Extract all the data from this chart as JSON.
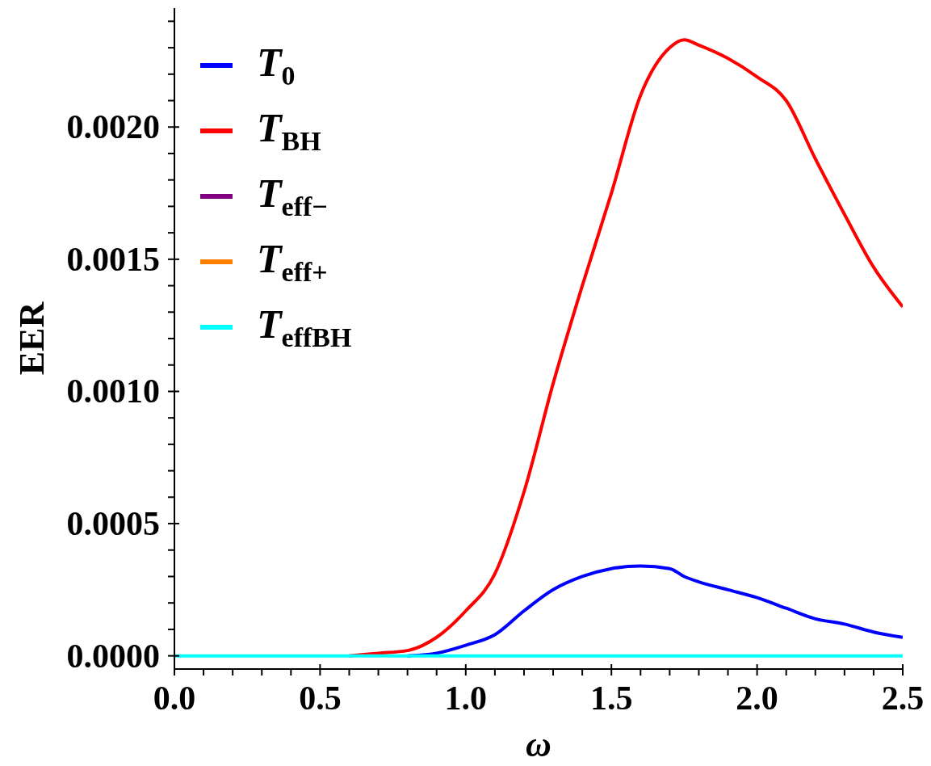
{
  "chart_data": {
    "type": "line",
    "xlabel": "ω",
    "ylabel": "EER",
    "legend": "top left",
    "grid": false,
    "marker": "none",
    "line_style": "solid",
    "x": [
      0,
      0.1,
      0.2,
      0.3,
      0.4,
      0.5,
      0.6,
      0.7,
      0.8,
      0.9,
      1.0,
      1.1,
      1.2,
      1.3,
      1.4,
      1.5,
      1.6,
      1.7,
      1.75,
      1.8,
      1.9,
      2.0,
      2.1,
      2.2,
      2.3,
      2.4,
      2.5
    ],
    "series": [
      {
        "name": "T$_{0}$",
        "color": "#0000ff",
        "values": [
          null,
          null,
          null,
          null,
          null,
          null,
          null,
          null,
          0,
          1e-05,
          4e-05,
          8e-05,
          0.00017,
          0.00025,
          0.0003,
          0.00033,
          0.00034,
          0.00033,
          0.0003,
          0.00028,
          0.00025,
          0.00022,
          0.00018,
          0.00014,
          0.00012,
          9e-05,
          7e-05
        ]
      },
      {
        "name": "T$_{BH}$",
        "color": "#ff0000",
        "values": [
          null,
          null,
          null,
          null,
          null,
          null,
          0,
          1e-05,
          2e-05,
          7e-05,
          0.00017,
          0.00031,
          0.00062,
          0.00103,
          0.0014,
          0.00175,
          0.00212,
          0.0023,
          0.00233,
          0.00231,
          0.00226,
          0.00219,
          0.0021,
          0.00188,
          0.00167,
          0.00147,
          0.00132
        ]
      },
      {
        "name": "T$_{eff−}$",
        "color": "#800080",
        "values": [
          null,
          null,
          null,
          null,
          null,
          null,
          null,
          null,
          null,
          null,
          null,
          null,
          null,
          null,
          null,
          null,
          null,
          null,
          null,
          null,
          null,
          null,
          null,
          null,
          null,
          null,
          null
        ]
      },
      {
        "name": "T$_{eff+}$",
        "color": "#ff8000",
        "values": [
          null,
          null,
          null,
          null,
          null,
          null,
          null,
          null,
          null,
          null,
          null,
          null,
          null,
          null,
          null,
          null,
          null,
          null,
          null,
          null,
          null,
          null,
          null,
          null,
          null,
          null,
          null
        ]
      },
      {
        "name": "T$_{effBH}$",
        "color": "#00ffff",
        "values": [
          0,
          0,
          0,
          0,
          0,
          0,
          0,
          0,
          0,
          0,
          0,
          0,
          0,
          0,
          0,
          0,
          0,
          0,
          0,
          0,
          0,
          0,
          0,
          0,
          0,
          0,
          0
        ]
      }
    ],
    "xlim": [
      0,
      2.5
    ],
    "xticks": [
      {
        "value": 0,
        "label": "0.0"
      },
      {
        "value": 0.1,
        "label": null
      },
      {
        "value": 0.2,
        "label": null
      },
      {
        "value": 0.3,
        "label": null
      },
      {
        "value": 0.4,
        "label": null
      },
      {
        "value": 0.5,
        "label": "0.5"
      },
      {
        "value": 0.6,
        "label": null
      },
      {
        "value": 0.7,
        "label": null
      },
      {
        "value": 0.8,
        "label": null
      },
      {
        "value": 0.9,
        "label": null
      },
      {
        "value": 1,
        "label": "1.0"
      },
      {
        "value": 1.1,
        "label": null
      },
      {
        "value": 1.2,
        "label": null
      },
      {
        "value": 1.3,
        "label": null
      },
      {
        "value": 1.4,
        "label": null
      },
      {
        "value": 1.5,
        "label": "1.5"
      },
      {
        "value": 1.6,
        "label": null
      },
      {
        "value": 1.7,
        "label": null
      },
      {
        "value": 1.8,
        "label": null
      },
      {
        "value": 1.9,
        "label": null
      },
      {
        "value": 2,
        "label": "2.0"
      },
      {
        "value": 2.1,
        "label": null
      },
      {
        "value": 2.2,
        "label": null
      },
      {
        "value": 2.3,
        "label": null
      },
      {
        "value": 2.4,
        "label": null
      },
      {
        "value": 2.5,
        "label": "2.5"
      }
    ],
    "ylim": [
      -5e-05,
      0.00245
    ],
    "yticks": [
      {
        "value": 0,
        "label": "0.0000"
      },
      {
        "value": 0.0001,
        "label": null
      },
      {
        "value": 0.0002,
        "label": null
      },
      {
        "value": 0.0003,
        "label": null
      },
      {
        "value": 0.0004,
        "label": null
      },
      {
        "value": 0.0005,
        "label": "0.0005"
      },
      {
        "value": 0.0006,
        "label": null
      },
      {
        "value": 0.0007,
        "label": null
      },
      {
        "value": 0.0008,
        "label": null
      },
      {
        "value": 0.0009,
        "label": null
      },
      {
        "value": 0.001,
        "label": "0.0010"
      },
      {
        "value": 0.0011,
        "label": null
      },
      {
        "value": 0.0012,
        "label": null
      },
      {
        "value": 0.0013,
        "label": null
      },
      {
        "value": 0.0014,
        "label": null
      },
      {
        "value": 0.0015,
        "label": "0.0015"
      },
      {
        "value": 0.0016,
        "label": null
      },
      {
        "value": 0.0017,
        "label": null
      },
      {
        "value": 0.0018,
        "label": null
      },
      {
        "value": 0.0019,
        "label": null
      },
      {
        "value": 0.002,
        "label": "0.0020"
      },
      {
        "value": 0.0021,
        "label": null
      },
      {
        "value": 0.0022,
        "label": null
      },
      {
        "value": 0.0023,
        "label": null
      },
      {
        "value": 0.0024,
        "label": null
      }
    ]
  }
}
